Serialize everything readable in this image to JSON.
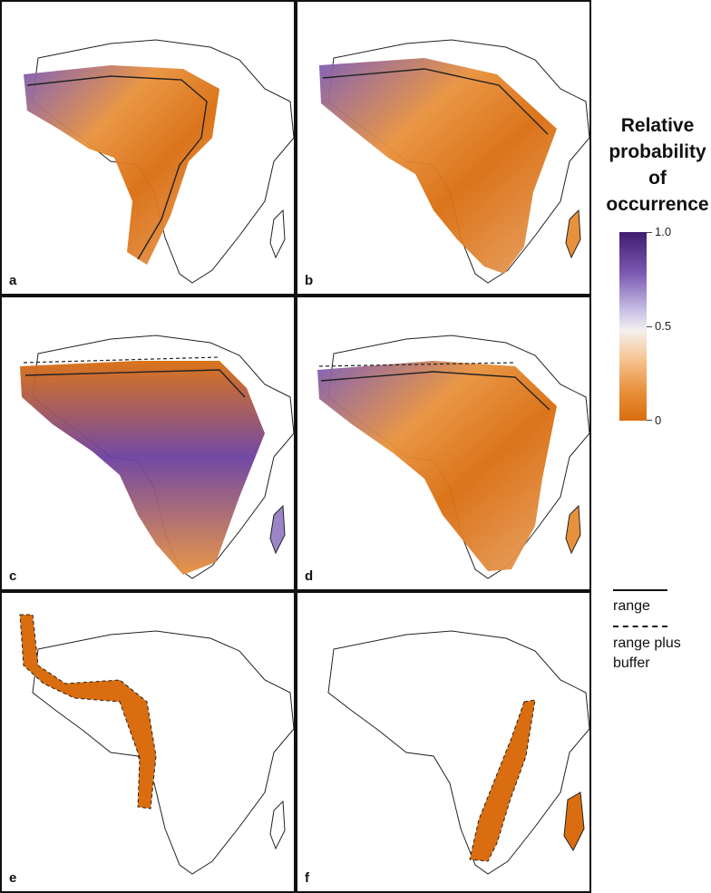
{
  "panels": [
    {
      "label": "a"
    },
    {
      "label": "b"
    },
    {
      "label": "c"
    },
    {
      "label": "d"
    },
    {
      "label": "e"
    },
    {
      "label": "f"
    }
  ],
  "legend": {
    "title_lines": [
      "Relative",
      "probability",
      "of",
      "occurrence"
    ],
    "ticks": [
      {
        "value": "1.0",
        "fraction": 1.0
      },
      {
        "value": "0.5",
        "fraction": 0.5
      },
      {
        "value": "0",
        "fraction": 0.0
      }
    ],
    "colors": {
      "high": "#3f1d6e",
      "mid": "#f4f0f0",
      "low": "#d96d0f"
    }
  },
  "line_key": {
    "range_label": "range",
    "buffer_label_lines": [
      "range plus",
      "buffer"
    ]
  },
  "colors": {
    "land_outline": "#222222",
    "border": "#111111"
  }
}
